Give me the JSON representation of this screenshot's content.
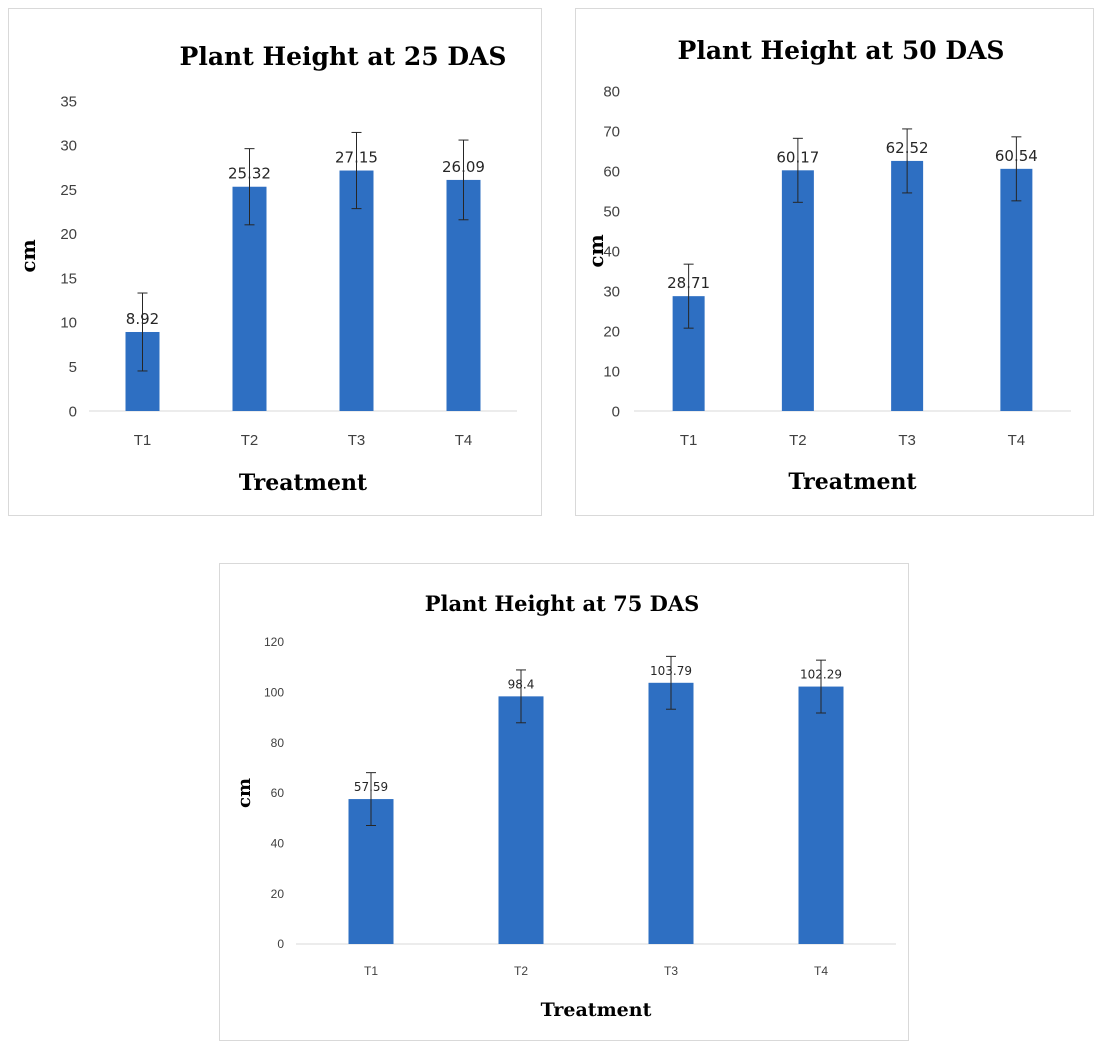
{
  "chart_data": [
    {
      "type": "bar",
      "title": "Plant Height at 25 DAS",
      "xlabel": "Treatment",
      "ylabel": "cm",
      "categories": [
        "T1",
        "T2",
        "T3",
        "T4"
      ],
      "values": [
        8.92,
        25.32,
        27.15,
        26.09
      ],
      "data_labels": [
        "8.92",
        "25.32",
        "27.15",
        "26.09"
      ],
      "error": [
        4.4,
        4.3,
        4.3,
        4.5
      ],
      "ylim": [
        0,
        35
      ],
      "yticks": [
        0,
        5,
        10,
        15,
        20,
        25,
        30,
        35
      ],
      "grid": false,
      "legend": "none",
      "bar_color": "#2e6fc2"
    },
    {
      "type": "bar",
      "title": "Plant Height at 50 DAS",
      "xlabel": "Treatment",
      "ylabel": "cm",
      "categories": [
        "T1",
        "T2",
        "T3",
        "T4"
      ],
      "values": [
        28.71,
        60.17,
        62.52,
        60.54
      ],
      "data_labels": [
        "28.71",
        "60.17",
        "62.52",
        "60.54"
      ],
      "error": [
        8,
        8,
        8,
        8
      ],
      "ylim": [
        0,
        80
      ],
      "yticks": [
        0,
        10,
        20,
        30,
        40,
        50,
        60,
        70,
        80
      ],
      "grid": false,
      "legend": "none",
      "bar_color": "#2e6fc2"
    },
    {
      "type": "bar",
      "title": "Plant Height at 75 DAS",
      "xlabel": "Treatment",
      "ylabel": "cm",
      "categories": [
        "T1",
        "T2",
        "T3",
        "T4"
      ],
      "values": [
        57.59,
        98.4,
        103.79,
        102.29
      ],
      "data_labels": [
        "57.59",
        "98.4",
        "103.79",
        "102.29"
      ],
      "error": [
        10.5,
        10.5,
        10.5,
        10.5
      ],
      "ylim": [
        0,
        120
      ],
      "yticks": [
        0,
        20,
        40,
        60,
        80,
        100,
        120
      ],
      "grid": false,
      "legend": "none",
      "bar_color": "#2e6fc2"
    }
  ]
}
